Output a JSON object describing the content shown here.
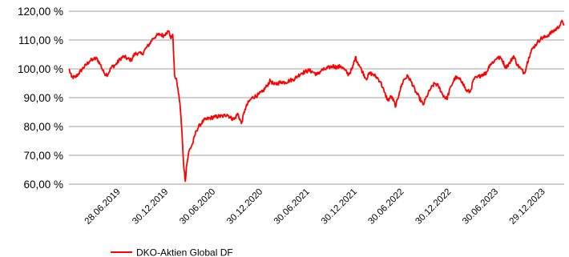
{
  "chart_data": {
    "type": "line",
    "title": "",
    "xlabel": "",
    "ylabel": "",
    "ylim": [
      60,
      120
    ],
    "y_ticks": [
      60,
      70,
      80,
      90,
      100,
      110,
      120
    ],
    "y_tick_labels": [
      "60,00 %",
      "70,00 %",
      "80,00 %",
      "90,00 %",
      "100,00 %",
      "110,00 %",
      "120,00 %"
    ],
    "x_range": [
      "2018-12-28",
      "2024-03-29"
    ],
    "x_ticks": [
      {
        "date": "2019-06-28",
        "label": "28.06.2019"
      },
      {
        "date": "2019-12-30",
        "label": "30.12.2019"
      },
      {
        "date": "2020-06-30",
        "label": "30.06.2020"
      },
      {
        "date": "2020-12-30",
        "label": "30.12.2020"
      },
      {
        "date": "2021-06-30",
        "label": "30.06.2021"
      },
      {
        "date": "2021-12-30",
        "label": "30.12.2021"
      },
      {
        "date": "2022-06-30",
        "label": "30.06.2022"
      },
      {
        "date": "2022-12-30",
        "label": "30.12.2022"
      },
      {
        "date": "2023-06-30",
        "label": "30.06.2023"
      },
      {
        "date": "2023-12-29",
        "label": "29.12.2023"
      }
    ],
    "grid": true,
    "legend_position": "bottom-left",
    "series": [
      {
        "name": "DKO-Aktien Global DF",
        "color": "#ff0000",
        "points": [
          [
            "2018-12-28",
            100.0
          ],
          [
            "2019-01-07",
            97.2
          ],
          [
            "2019-01-21",
            97.0
          ],
          [
            "2019-02-04",
            98.4
          ],
          [
            "2019-02-18",
            100.0
          ],
          [
            "2019-03-04",
            101.3
          ],
          [
            "2019-03-18",
            102.7
          ],
          [
            "2019-04-01",
            103.3
          ],
          [
            "2019-04-15",
            103.6
          ],
          [
            "2019-04-29",
            101.5
          ],
          [
            "2019-05-13",
            98.5
          ],
          [
            "2019-05-27",
            98.0
          ],
          [
            "2019-06-10",
            100.5
          ],
          [
            "2019-06-28",
            101.5
          ],
          [
            "2019-07-15",
            103.5
          ],
          [
            "2019-07-29",
            104.3
          ],
          [
            "2019-08-12",
            103.5
          ],
          [
            "2019-08-26",
            103.0
          ],
          [
            "2019-09-09",
            105.2
          ],
          [
            "2019-09-23",
            105.5
          ],
          [
            "2019-10-07",
            105.0
          ],
          [
            "2019-10-21",
            107.0
          ],
          [
            "2019-11-04",
            108.5
          ],
          [
            "2019-11-18",
            110.5
          ],
          [
            "2019-12-02",
            111.5
          ],
          [
            "2019-12-16",
            112.0
          ],
          [
            "2019-12-30",
            111.5
          ],
          [
            "2020-01-08",
            112.5
          ],
          [
            "2020-01-20",
            113.0
          ],
          [
            "2020-01-27",
            110.5
          ],
          [
            "2020-02-03",
            112.0
          ],
          [
            "2020-02-10",
            98.0
          ],
          [
            "2020-02-19",
            95.5
          ],
          [
            "2020-03-02",
            88.0
          ],
          [
            "2020-03-09",
            79.0
          ],
          [
            "2020-03-16",
            67.0
          ],
          [
            "2020-03-23",
            61.0
          ],
          [
            "2020-03-27",
            66.0
          ],
          [
            "2020-04-06",
            71.5
          ],
          [
            "2020-04-20",
            74.0
          ],
          [
            "2020-05-04",
            78.5
          ],
          [
            "2020-05-18",
            80.5
          ],
          [
            "2020-06-01",
            82.0
          ],
          [
            "2020-06-15",
            82.6
          ],
          [
            "2020-06-30",
            83.0
          ],
          [
            "2020-07-15",
            83.3
          ],
          [
            "2020-07-31",
            83.5
          ],
          [
            "2020-08-17",
            83.6
          ],
          [
            "2020-09-01",
            84.2
          ],
          [
            "2020-09-14",
            83.0
          ],
          [
            "2020-09-28",
            82.5
          ],
          [
            "2020-10-12",
            84.5
          ],
          [
            "2020-10-26",
            81.0
          ],
          [
            "2020-11-09",
            86.0
          ],
          [
            "2020-11-23",
            88.5
          ],
          [
            "2020-12-07",
            90.0
          ],
          [
            "2020-12-30",
            91.0
          ],
          [
            "2021-01-15",
            92.0
          ],
          [
            "2021-02-01",
            94.0
          ],
          [
            "2021-02-15",
            96.0
          ],
          [
            "2021-03-01",
            94.5
          ],
          [
            "2021-03-15",
            95.0
          ],
          [
            "2021-04-01",
            95.5
          ],
          [
            "2021-04-15",
            95.3
          ],
          [
            "2021-05-01",
            96.0
          ],
          [
            "2021-05-15",
            96.3
          ],
          [
            "2021-06-01",
            97.5
          ],
          [
            "2021-06-15",
            98.5
          ],
          [
            "2021-06-30",
            99.0
          ],
          [
            "2021-07-15",
            99.5
          ],
          [
            "2021-08-01",
            98.8
          ],
          [
            "2021-08-15",
            98.0
          ],
          [
            "2021-09-01",
            99.5
          ],
          [
            "2021-09-15",
            99.8
          ],
          [
            "2021-10-01",
            100.5
          ],
          [
            "2021-10-15",
            101.0
          ],
          [
            "2021-11-01",
            100.5
          ],
          [
            "2021-11-15",
            101.0
          ],
          [
            "2021-12-01",
            99.5
          ],
          [
            "2021-12-15",
            98.0
          ],
          [
            "2021-12-30",
            100.2
          ],
          [
            "2022-01-10",
            104.0
          ],
          [
            "2022-01-24",
            101.5
          ],
          [
            "2022-02-07",
            99.0
          ],
          [
            "2022-02-21",
            96.5
          ],
          [
            "2022-03-07",
            98.5
          ],
          [
            "2022-03-21",
            98.0
          ],
          [
            "2022-04-04",
            97.0
          ],
          [
            "2022-04-18",
            95.5
          ],
          [
            "2022-05-02",
            92.0
          ],
          [
            "2022-05-16",
            89.0
          ],
          [
            "2022-05-30",
            90.5
          ],
          [
            "2022-06-16",
            87.0
          ],
          [
            "2022-06-30",
            92.0
          ],
          [
            "2022-07-15",
            96.0
          ],
          [
            "2022-08-01",
            97.5
          ],
          [
            "2022-08-15",
            95.5
          ],
          [
            "2022-09-01",
            92.0
          ],
          [
            "2022-09-15",
            90.0
          ],
          [
            "2022-09-30",
            87.5
          ],
          [
            "2022-10-14",
            90.5
          ],
          [
            "2022-10-28",
            93.0
          ],
          [
            "2022-11-14",
            95.0
          ],
          [
            "2022-11-28",
            94.0
          ],
          [
            "2022-12-15",
            91.0
          ],
          [
            "2022-12-30",
            89.5
          ],
          [
            "2023-01-16",
            94.0
          ],
          [
            "2023-02-01",
            97.0
          ],
          [
            "2023-02-15",
            96.5
          ],
          [
            "2023-03-01",
            95.5
          ],
          [
            "2023-03-15",
            92.5
          ],
          [
            "2023-03-31",
            92.0
          ],
          [
            "2023-04-14",
            96.5
          ],
          [
            "2023-04-28",
            97.0
          ],
          [
            "2023-05-15",
            98.0
          ],
          [
            "2023-06-01",
            98.5
          ],
          [
            "2023-06-15",
            101.5
          ],
          [
            "2023-06-30",
            102.5
          ],
          [
            "2023-07-14",
            104.0
          ],
          [
            "2023-07-31",
            103.5
          ],
          [
            "2023-08-15",
            100.5
          ],
          [
            "2023-08-31",
            102.0
          ],
          [
            "2023-09-15",
            104.5
          ],
          [
            "2023-09-29",
            101.5
          ],
          [
            "2023-10-13",
            100.0
          ],
          [
            "2023-10-27",
            98.5
          ],
          [
            "2023-11-13",
            104.0
          ],
          [
            "2023-11-27",
            107.0
          ],
          [
            "2023-12-15",
            109.0
          ],
          [
            "2023-12-29",
            110.5
          ],
          [
            "2024-01-15",
            111.0
          ],
          [
            "2024-01-31",
            112.0
          ],
          [
            "2024-02-15",
            113.0
          ],
          [
            "2024-03-01",
            114.0
          ],
          [
            "2024-03-15",
            115.5
          ],
          [
            "2024-03-22",
            116.5
          ],
          [
            "2024-03-29",
            115.5
          ]
        ]
      }
    ]
  }
}
